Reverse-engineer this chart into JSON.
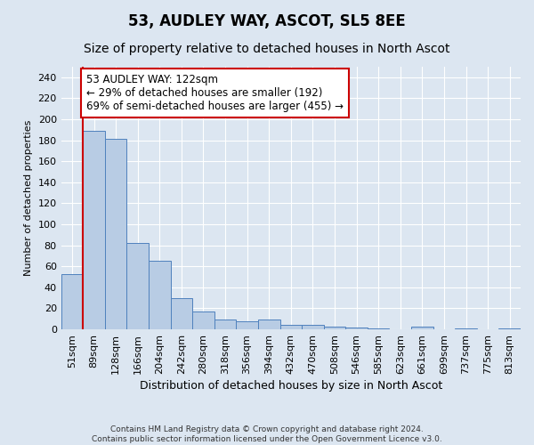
{
  "title": "53, AUDLEY WAY, ASCOT, SL5 8EE",
  "subtitle": "Size of property relative to detached houses in North Ascot",
  "xlabel": "Distribution of detached houses by size in North Ascot",
  "ylabel": "Number of detached properties",
  "footer_line1": "Contains HM Land Registry data © Crown copyright and database right 2024.",
  "footer_line2": "Contains public sector information licensed under the Open Government Licence v3.0.",
  "bar_labels": [
    "51sqm",
    "89sqm",
    "128sqm",
    "166sqm",
    "204sqm",
    "242sqm",
    "280sqm",
    "318sqm",
    "356sqm",
    "394sqm",
    "432sqm",
    "470sqm",
    "508sqm",
    "546sqm",
    "585sqm",
    "623sqm",
    "661sqm",
    "699sqm",
    "737sqm",
    "775sqm",
    "813sqm"
  ],
  "bar_values": [
    53,
    189,
    181,
    82,
    65,
    30,
    17,
    9,
    8,
    9,
    4,
    4,
    3,
    2,
    1,
    0,
    3,
    0,
    1,
    0,
    1
  ],
  "bar_color": "#b8cce4",
  "bar_edge_color": "#4f81bd",
  "background_color": "#dce6f1",
  "grid_color": "#ffffff",
  "annotation_text": "53 AUDLEY WAY: 122sqm\n← 29% of detached houses are smaller (192)\n69% of semi-detached houses are larger (455) →",
  "annotation_box_color": "#ffffff",
  "annotation_border_color": "#cc0000",
  "marker_bar_index": 1,
  "marker_color": "#cc0000",
  "ylim": [
    0,
    250
  ],
  "yticks": [
    0,
    20,
    40,
    60,
    80,
    100,
    120,
    140,
    160,
    180,
    200,
    220,
    240
  ],
  "title_fontsize": 12,
  "subtitle_fontsize": 10,
  "xlabel_fontsize": 9,
  "ylabel_fontsize": 8,
  "tick_fontsize": 8,
  "annotation_fontsize": 8.5
}
